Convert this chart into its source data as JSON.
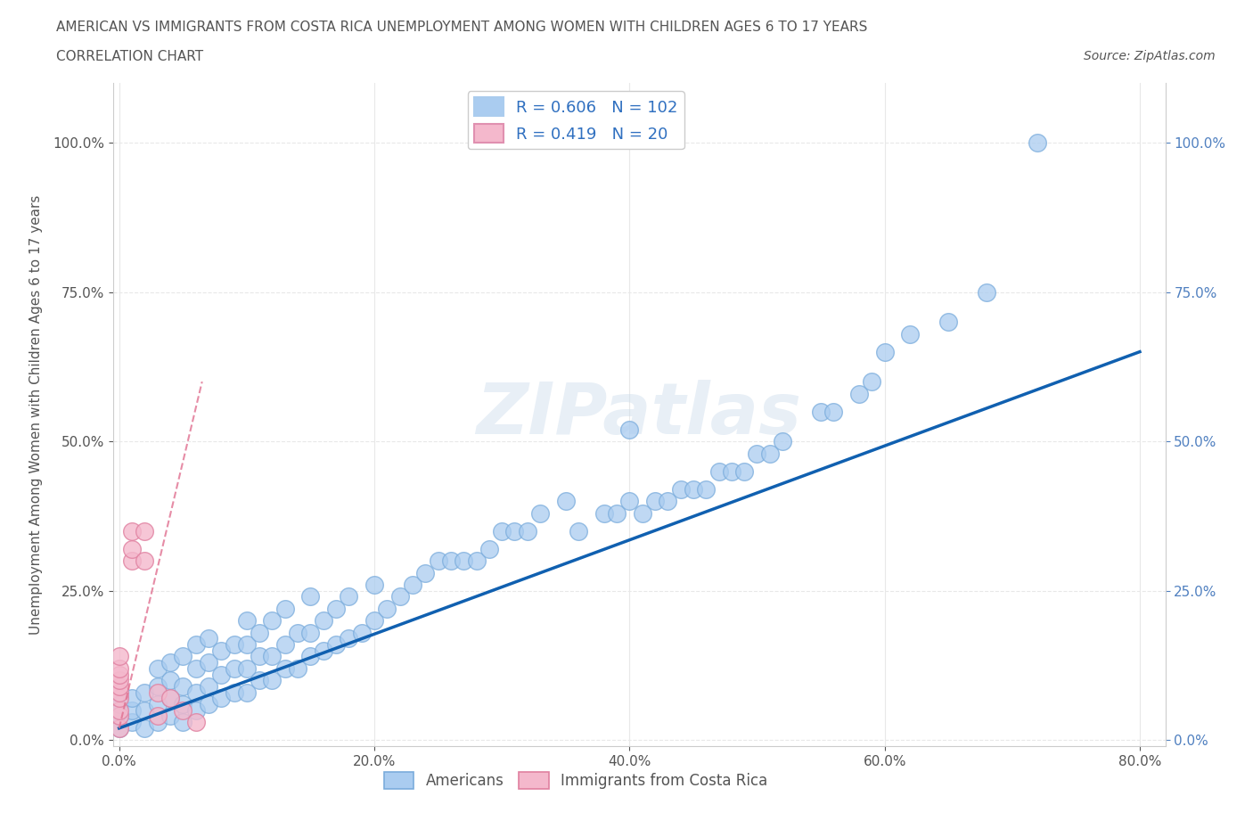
{
  "title_line1": "AMERICAN VS IMMIGRANTS FROM COSTA RICA UNEMPLOYMENT AMONG WOMEN WITH CHILDREN AGES 6 TO 17 YEARS",
  "title_line2": "CORRELATION CHART",
  "source_text": "Source: ZipAtlas.com",
  "ylabel": "Unemployment Among Women with Children Ages 6 to 17 years",
  "watermark": "ZIPatlas",
  "american_R": 0.606,
  "american_N": 102,
  "costarica_R": 0.419,
  "costarica_N": 20,
  "xlim": [
    -0.005,
    0.82
  ],
  "ylim": [
    -0.01,
    1.1
  ],
  "xtick_vals": [
    0.0,
    0.2,
    0.4,
    0.6,
    0.8
  ],
  "ytick_vals": [
    0.0,
    0.25,
    0.5,
    0.75,
    1.0
  ],
  "american_color": "#aaccf0",
  "american_edge_color": "#7aacdc",
  "costarica_color": "#f4b8cc",
  "costarica_edge_color": "#e080a0",
  "american_line_color": "#1060b0",
  "costarica_line_color": "#e07090",
  "background_color": "#ffffff",
  "grid_color": "#e8e8e8",
  "title_color": "#555555",
  "right_axis_label_color": "#5080c0",
  "legend_R_N_color": "#3070c0",
  "americans_x": [
    0.0,
    0.0,
    0.0,
    0.01,
    0.01,
    0.01,
    0.02,
    0.02,
    0.02,
    0.03,
    0.03,
    0.03,
    0.03,
    0.04,
    0.04,
    0.04,
    0.04,
    0.05,
    0.05,
    0.05,
    0.05,
    0.06,
    0.06,
    0.06,
    0.06,
    0.07,
    0.07,
    0.07,
    0.07,
    0.08,
    0.08,
    0.08,
    0.09,
    0.09,
    0.09,
    0.1,
    0.1,
    0.1,
    0.1,
    0.11,
    0.11,
    0.11,
    0.12,
    0.12,
    0.12,
    0.13,
    0.13,
    0.13,
    0.14,
    0.14,
    0.15,
    0.15,
    0.15,
    0.16,
    0.16,
    0.17,
    0.17,
    0.18,
    0.18,
    0.19,
    0.2,
    0.2,
    0.21,
    0.22,
    0.23,
    0.24,
    0.25,
    0.26,
    0.27,
    0.28,
    0.29,
    0.3,
    0.31,
    0.32,
    0.33,
    0.35,
    0.36,
    0.38,
    0.39,
    0.4,
    0.4,
    0.41,
    0.42,
    0.43,
    0.44,
    0.45,
    0.46,
    0.47,
    0.48,
    0.49,
    0.5,
    0.51,
    0.52,
    0.55,
    0.56,
    0.58,
    0.59,
    0.6,
    0.62,
    0.65,
    0.68,
    0.72
  ],
  "americans_y": [
    0.02,
    0.04,
    0.06,
    0.03,
    0.05,
    0.07,
    0.02,
    0.05,
    0.08,
    0.03,
    0.06,
    0.09,
    0.12,
    0.04,
    0.07,
    0.1,
    0.13,
    0.03,
    0.06,
    0.09,
    0.14,
    0.05,
    0.08,
    0.12,
    0.16,
    0.06,
    0.09,
    0.13,
    0.17,
    0.07,
    0.11,
    0.15,
    0.08,
    0.12,
    0.16,
    0.08,
    0.12,
    0.16,
    0.2,
    0.1,
    0.14,
    0.18,
    0.1,
    0.14,
    0.2,
    0.12,
    0.16,
    0.22,
    0.12,
    0.18,
    0.14,
    0.18,
    0.24,
    0.15,
    0.2,
    0.16,
    0.22,
    0.17,
    0.24,
    0.18,
    0.2,
    0.26,
    0.22,
    0.24,
    0.26,
    0.28,
    0.3,
    0.3,
    0.3,
    0.3,
    0.32,
    0.35,
    0.35,
    0.35,
    0.38,
    0.4,
    0.35,
    0.38,
    0.38,
    0.4,
    0.52,
    0.38,
    0.4,
    0.4,
    0.42,
    0.42,
    0.42,
    0.45,
    0.45,
    0.45,
    0.48,
    0.48,
    0.5,
    0.55,
    0.55,
    0.58,
    0.6,
    0.65,
    0.68,
    0.7,
    0.75,
    1.0
  ],
  "costarica_x": [
    0.0,
    0.0,
    0.0,
    0.0,
    0.0,
    0.0,
    0.0,
    0.0,
    0.0,
    0.0,
    0.01,
    0.01,
    0.01,
    0.02,
    0.02,
    0.03,
    0.03,
    0.04,
    0.05,
    0.06
  ],
  "costarica_y": [
    0.02,
    0.04,
    0.05,
    0.07,
    0.08,
    0.09,
    0.1,
    0.11,
    0.12,
    0.14,
    0.3,
    0.32,
    0.35,
    0.3,
    0.35,
    0.04,
    0.08,
    0.07,
    0.05,
    0.03
  ],
  "am_line_x0": 0.0,
  "am_line_x1": 0.8,
  "am_line_y0": 0.02,
  "am_line_y1": 0.65,
  "cr_line_x0": 0.0,
  "cr_line_x1": 0.065,
  "cr_line_y0": 0.02,
  "cr_line_y1": 0.6
}
